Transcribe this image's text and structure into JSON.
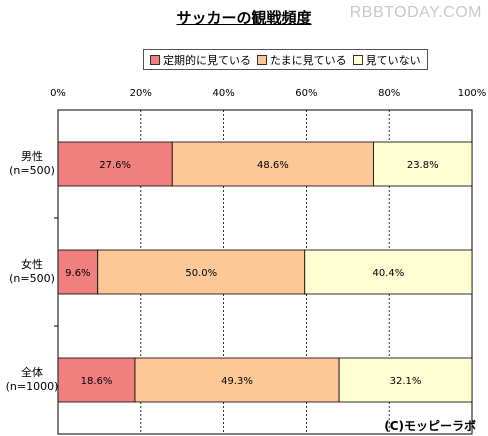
{
  "title": "サッカーの観戦頻度",
  "watermark": "RBBTODAY.COM",
  "credit": "(C)モッピーラボ",
  "legend": [
    {
      "label": "定期的に見ている",
      "color": "#f08080"
    },
    {
      "label": "たまに見ている",
      "color": "#fcc898"
    },
    {
      "label": "見ていない",
      "color": "#fefed2"
    }
  ],
  "chart_data": {
    "type": "bar",
    "orientation": "horizontal",
    "stacked": true,
    "percent_stacked": true,
    "categories": [
      {
        "name": "男性",
        "n": "(n=500)"
      },
      {
        "name": "女性",
        "n": "(n=500)"
      },
      {
        "name": "全体",
        "n": "(n=1000)"
      }
    ],
    "series": [
      {
        "name": "定期的に見ている",
        "values": [
          27.6,
          9.6,
          18.6
        ],
        "labels": [
          "27.6%",
          "9.6%",
          "18.6%"
        ],
        "color": "#f08080"
      },
      {
        "name": "たまに見ている",
        "values": [
          48.6,
          50.0,
          49.3
        ],
        "labels": [
          "48.6%",
          "50.0%",
          "49.3%"
        ],
        "color": "#fcc898"
      },
      {
        "name": "見ていない",
        "values": [
          23.8,
          40.4,
          32.1
        ],
        "labels": [
          "23.8%",
          "40.4%",
          "32.1%"
        ],
        "color": "#fefed2"
      }
    ],
    "xlim": [
      0,
      100
    ],
    "ticks": [
      "0%",
      "20%",
      "40%",
      "60%",
      "80%",
      "100%"
    ],
    "gridlines": true,
    "legend_position": "top"
  }
}
